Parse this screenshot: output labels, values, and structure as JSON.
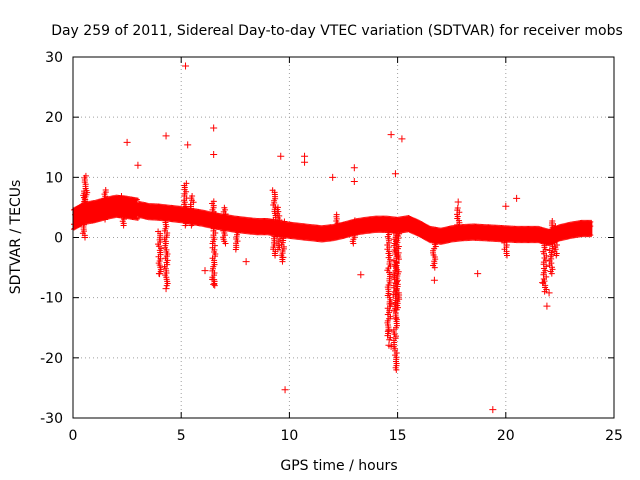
{
  "chart_data": {
    "type": "scatter",
    "title": "Day 259 of 2011, Sidereal Day-to-day VTEC variation (SDTVAR) for receiver mobs",
    "xlabel": "GPS time / hours",
    "ylabel": "SDTVAR / TECUs",
    "xlim": [
      0,
      25
    ],
    "ylim": [
      -30,
      30
    ],
    "xticks": [
      0,
      5,
      10,
      15,
      20,
      25
    ],
    "yticks": [
      -30,
      -20,
      -10,
      0,
      10,
      20,
      30
    ],
    "grid": true,
    "marker": "+",
    "series": [
      {
        "name": "SDTVAR",
        "color": "#ff0000",
        "baseline": [
          [
            0.0,
            3.0
          ],
          [
            0.5,
            4.0
          ],
          [
            1.0,
            4.3
          ],
          [
            1.5,
            4.8
          ],
          [
            2.0,
            5.2
          ],
          [
            2.5,
            5.0
          ],
          [
            3.0,
            4.7
          ],
          [
            3.5,
            4.3
          ],
          [
            4.0,
            4.2
          ],
          [
            4.5,
            4.0
          ],
          [
            5.0,
            3.8
          ],
          [
            5.5,
            3.5
          ],
          [
            6.0,
            3.2
          ],
          [
            6.5,
            2.8
          ],
          [
            7.0,
            2.5
          ],
          [
            7.5,
            2.2
          ],
          [
            8.0,
            2.0
          ],
          [
            8.5,
            1.8
          ],
          [
            9.0,
            1.8
          ],
          [
            9.5,
            1.5
          ],
          [
            10.0,
            1.2
          ],
          [
            10.5,
            1.0
          ],
          [
            11.0,
            0.8
          ],
          [
            11.5,
            0.6
          ],
          [
            12.0,
            0.8
          ],
          [
            12.5,
            1.2
          ],
          [
            13.0,
            1.7
          ],
          [
            13.5,
            2.0
          ],
          [
            14.0,
            2.2
          ],
          [
            14.5,
            2.2
          ],
          [
            15.0,
            2.0
          ],
          [
            15.5,
            2.3
          ],
          [
            16.0,
            1.5
          ],
          [
            16.5,
            0.5
          ],
          [
            17.0,
            0.2
          ],
          [
            17.5,
            0.6
          ],
          [
            18.0,
            0.8
          ],
          [
            18.5,
            0.9
          ],
          [
            19.0,
            0.8
          ],
          [
            19.5,
            0.7
          ],
          [
            20.0,
            0.6
          ],
          [
            20.5,
            0.5
          ],
          [
            21.0,
            0.5
          ],
          [
            21.5,
            0.5
          ],
          [
            22.0,
            0.0
          ],
          [
            22.5,
            0.8
          ],
          [
            23.0,
            1.2
          ],
          [
            23.5,
            1.5
          ],
          [
            24.0,
            1.5
          ]
        ],
        "points": [
          [
            5.2,
            28.5
          ],
          [
            6.5,
            18.2
          ],
          [
            4.3,
            16.9
          ],
          [
            2.5,
            15.8
          ],
          [
            5.3,
            15.4
          ],
          [
            6.5,
            13.8
          ],
          [
            9.6,
            13.5
          ],
          [
            10.7,
            13.5
          ],
          [
            10.7,
            12.5
          ],
          [
            3.0,
            12.0
          ],
          [
            13.0,
            11.6
          ],
          [
            12.0,
            10.0
          ],
          [
            13.0,
            9.3
          ],
          [
            14.7,
            17.1
          ],
          [
            15.2,
            16.4
          ],
          [
            14.9,
            10.6
          ],
          [
            20.5,
            6.5
          ],
          [
            17.8,
            5.9
          ],
          [
            20.0,
            5.2
          ],
          [
            4.0,
            -6.0
          ],
          [
            4.3,
            -8.5
          ],
          [
            6.1,
            -5.5
          ],
          [
            6.5,
            -7.0
          ],
          [
            6.5,
            -7.8
          ],
          [
            8.0,
            -4.0
          ],
          [
            9.7,
            -3.3
          ],
          [
            13.3,
            -6.2
          ],
          [
            14.6,
            -15.5
          ],
          [
            14.6,
            -17.9
          ],
          [
            14.7,
            -18.1
          ],
          [
            14.7,
            -11.0
          ],
          [
            14.8,
            -9.5
          ],
          [
            14.9,
            -13.5
          ],
          [
            16.7,
            -7.1
          ],
          [
            18.7,
            -6.0
          ],
          [
            21.9,
            -11.4
          ],
          [
            22.0,
            -9.2
          ],
          [
            9.8,
            -25.3
          ],
          [
            19.4,
            -28.6
          ],
          [
            21.7,
            -7.5
          ]
        ]
      }
    ]
  }
}
